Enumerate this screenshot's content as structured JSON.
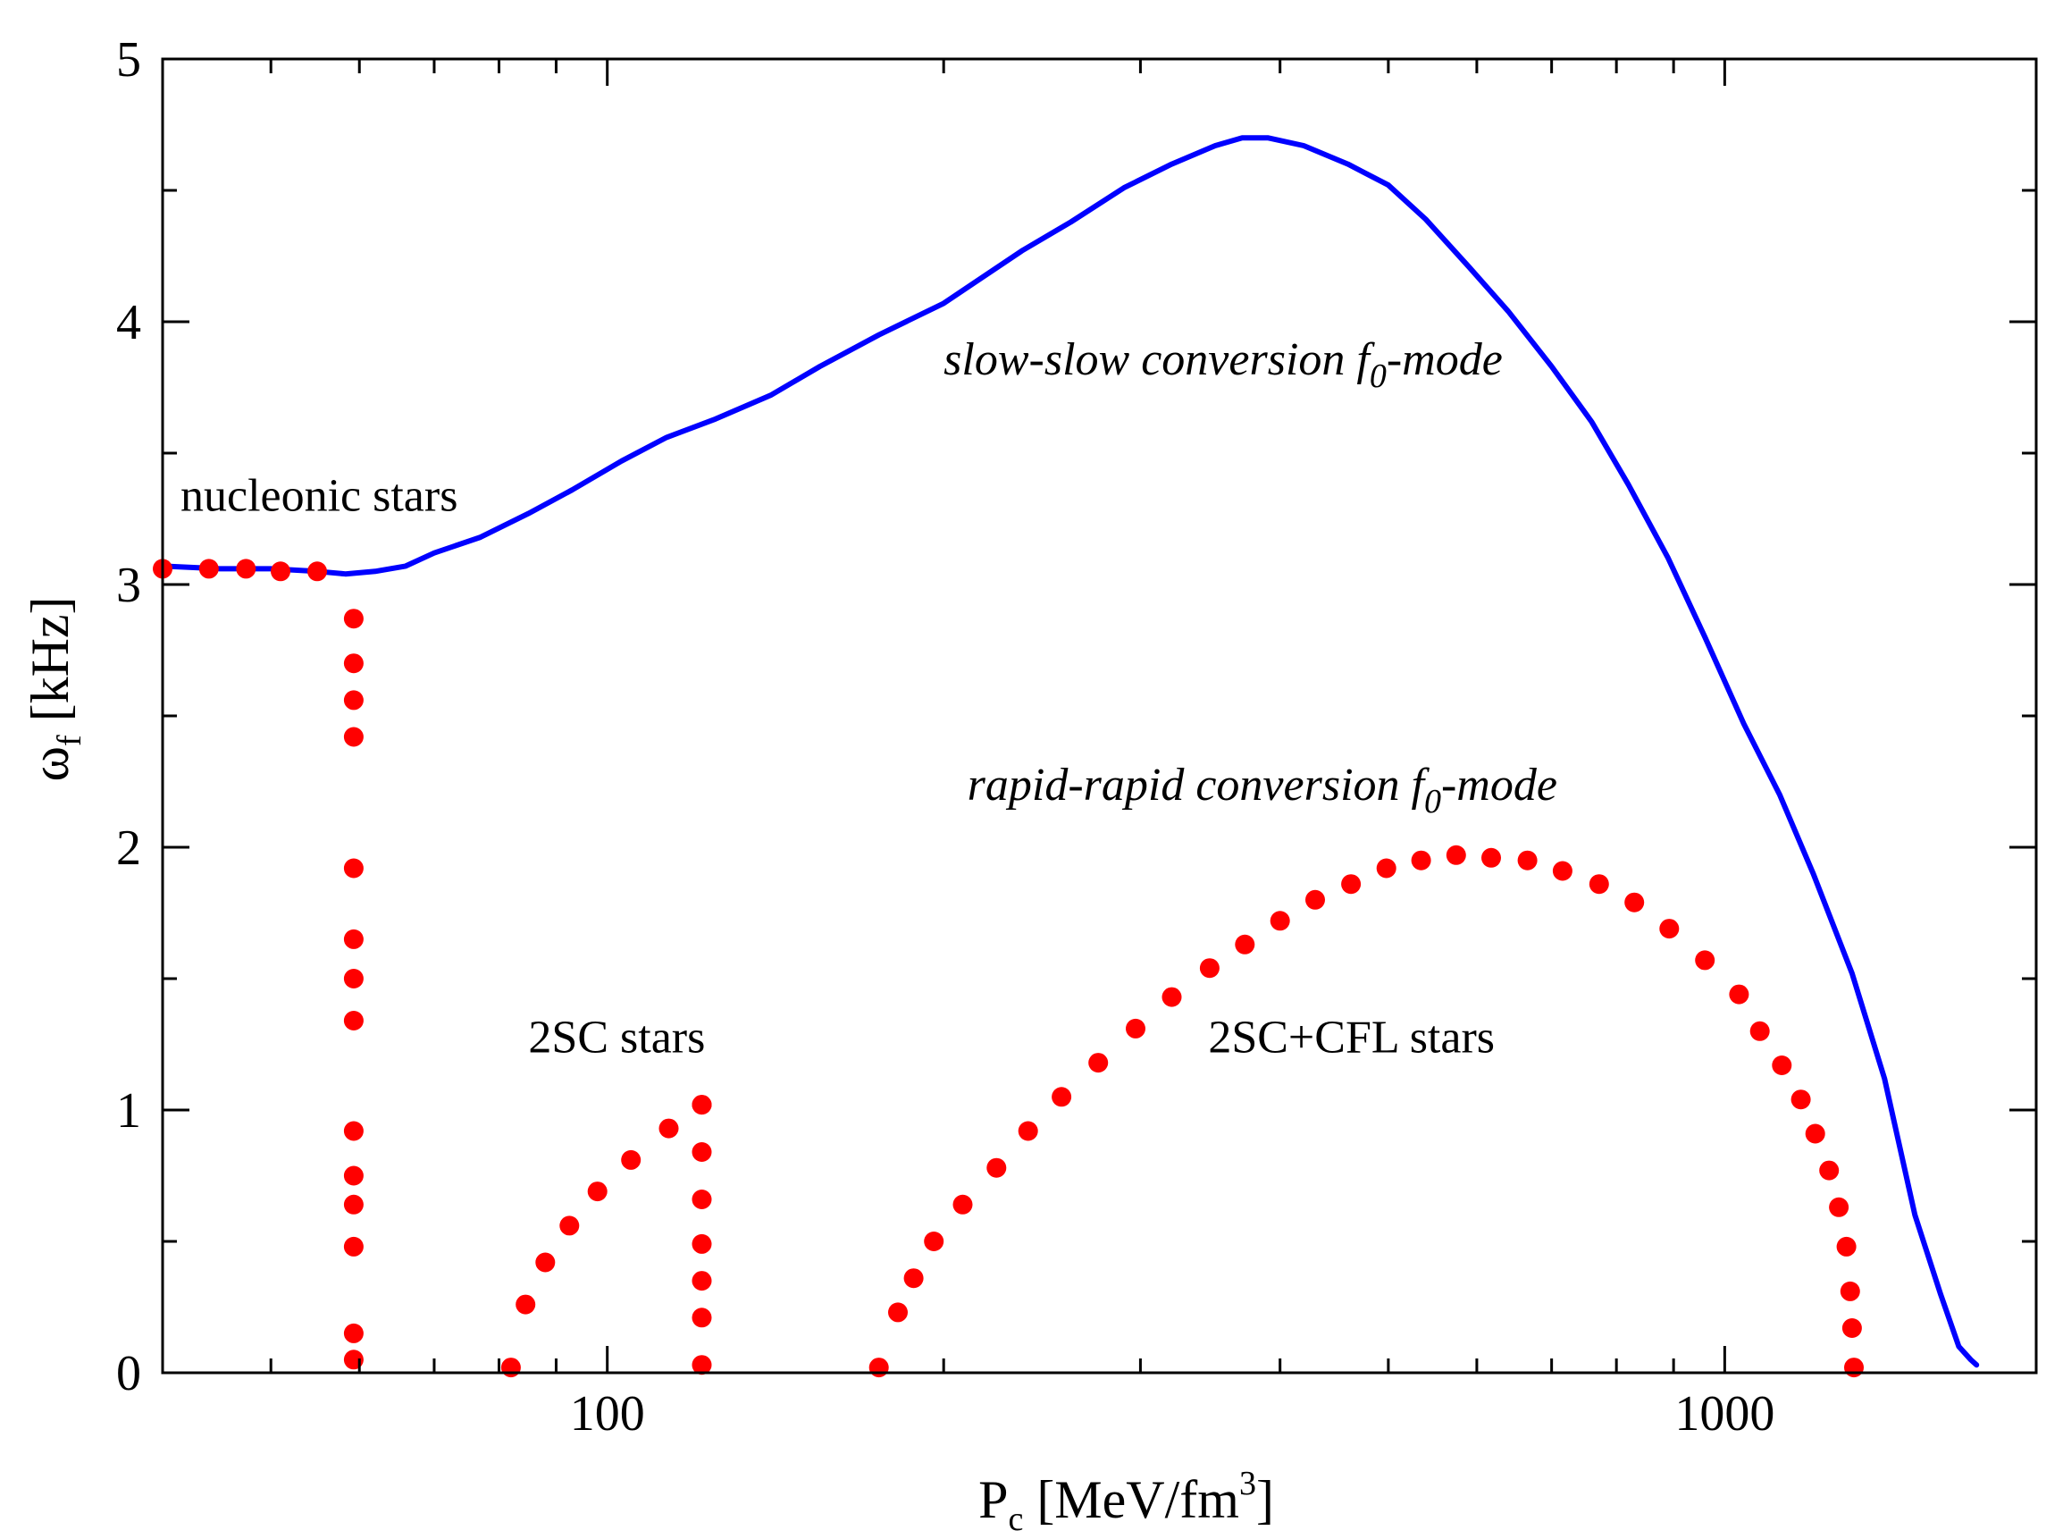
{
  "chart_data": {
    "type": "scatter",
    "title": "",
    "xscale": "log",
    "xlim": [
      40,
      1900
    ],
    "ylim": [
      0,
      5
    ],
    "xlabel": {
      "main": "P",
      "sub": "c",
      "rest": " [MeV/fm",
      "sup": "3",
      "end": "]"
    },
    "ylabel": {
      "main": "ω",
      "sub": "f",
      "rest": "  [kHz]"
    },
    "x_ticks": [
      {
        "value": 100,
        "label": "100"
      },
      {
        "value": 1000,
        "label": "1000"
      }
    ],
    "y_ticks": [
      {
        "value": 0,
        "label": "0"
      },
      {
        "value": 1,
        "label": "1"
      },
      {
        "value": 2,
        "label": "2"
      },
      {
        "value": 3,
        "label": "3"
      },
      {
        "value": 4,
        "label": "4"
      },
      {
        "value": 5,
        "label": "5"
      }
    ],
    "annotations": [
      {
        "key": "nucleonic",
        "text": "nucleonic stars",
        "x": 41.5,
        "y": 3.28,
        "style": "normal"
      },
      {
        "key": "slow",
        "parts": [
          "slow-slow conversion ",
          "f",
          "0",
          "-mode"
        ],
        "x": 200,
        "y": 3.8,
        "style": "italic"
      },
      {
        "key": "rapid",
        "parts": [
          "rapid-rapid conversion ",
          "f",
          "0",
          "-mode"
        ],
        "x": 210,
        "y": 2.18,
        "style": "italic"
      },
      {
        "key": "twosc",
        "text": "2SC stars",
        "x": 85,
        "y": 1.22,
        "style": "normal"
      },
      {
        "key": "cfl",
        "text": "2SC+CFL stars",
        "x": 345,
        "y": 1.22,
        "style": "normal"
      }
    ],
    "series": [
      {
        "name": "slow-slow conversion f0-mode",
        "style": "line",
        "color": "#0000ff",
        "x": [
          40,
          45,
          50,
          55,
          58.3,
          62,
          66,
          70,
          77,
          85,
          93,
          103,
          113,
          125,
          140,
          155,
          175,
          200,
          215,
          235,
          260,
          290,
          320,
          350,
          370,
          390,
          420,
          460,
          500,
          540,
          590,
          640,
          700,
          760,
          820,
          890,
          960,
          1040,
          1120,
          1200,
          1300,
          1390,
          1480,
          1560,
          1620,
          1660,
          1680
        ],
        "y": [
          3.07,
          3.06,
          3.06,
          3.05,
          3.04,
          3.05,
          3.07,
          3.12,
          3.18,
          3.27,
          3.36,
          3.47,
          3.56,
          3.63,
          3.72,
          3.83,
          3.95,
          4.07,
          4.16,
          4.27,
          4.38,
          4.51,
          4.6,
          4.67,
          4.7,
          4.7,
          4.67,
          4.6,
          4.52,
          4.39,
          4.21,
          4.04,
          3.83,
          3.62,
          3.38,
          3.1,
          2.8,
          2.47,
          2.2,
          1.9,
          1.52,
          1.12,
          0.6,
          0.3,
          0.1,
          0.05,
          0.03
        ]
      },
      {
        "name": "nucleonic stars",
        "style": "dots",
        "color": "#ff0000",
        "x": [
          40,
          44,
          47.5,
          51,
          55
        ],
        "y": [
          3.06,
          3.06,
          3.06,
          3.05,
          3.05
        ]
      },
      {
        "name": "nucleonic vertical branch",
        "style": "dots",
        "color": "#ff0000",
        "x": [
          59.3,
          59.3,
          59.3,
          59.3,
          59.3,
          59.3,
          59.3,
          59.3,
          59.3,
          59.3,
          59.3,
          59.3,
          59.3,
          59.3
        ],
        "y": [
          2.87,
          2.7,
          2.56,
          2.42,
          1.92,
          1.65,
          1.5,
          1.34,
          0.92,
          0.75,
          0.64,
          0.48,
          0.15,
          0.05
        ]
      },
      {
        "name": "2SC stars rising",
        "style": "dots",
        "color": "#ff0000",
        "x": [
          82,
          84.5,
          88,
          92.5,
          98,
          105,
          113.5
        ],
        "y": [
          0.02,
          0.26,
          0.42,
          0.56,
          0.69,
          0.81,
          0.93
        ]
      },
      {
        "name": "2SC stars vertical",
        "style": "dots",
        "color": "#ff0000",
        "x": [
          121.5,
          121.5,
          121.5,
          121.5,
          121.5,
          121.5,
          121.5,
          121.5
        ],
        "y": [
          1.02,
          0.84,
          0.66,
          0.49,
          0.35,
          0.21,
          0.03,
          1.02
        ]
      },
      {
        "name": "rapid-rapid conversion f0-mode (2SC+CFL stars)",
        "style": "dots",
        "color": "#ff0000",
        "x": [
          175,
          182,
          188,
          196,
          208,
          223,
          238,
          255,
          275,
          297,
          320,
          346,
          372,
          400,
          430,
          463,
          498,
          535,
          575,
          618,
          666,
          716,
          772,
          830,
          892,
          960,
          1030,
          1075,
          1125,
          1170,
          1205,
          1240,
          1265,
          1285,
          1295,
          1300
        ],
        "y": [
          0.02,
          0.23,
          0.36,
          0.5,
          0.64,
          0.78,
          0.92,
          1.05,
          1.18,
          1.31,
          1.43,
          1.54,
          1.63,
          1.72,
          1.8,
          1.86,
          1.92,
          1.95,
          1.97,
          1.96,
          1.95,
          1.91,
          1.86,
          1.79,
          1.69,
          1.57,
          1.44,
          1.3,
          1.17,
          1.04,
          0.91,
          0.77,
          0.63,
          0.48,
          0.31,
          0.17
        ]
      },
      {
        "name": "rapid-rapid endpoint",
        "style": "dots",
        "color": "#ff0000",
        "x": [
          1305
        ],
        "y": [
          0.02
        ]
      }
    ]
  }
}
